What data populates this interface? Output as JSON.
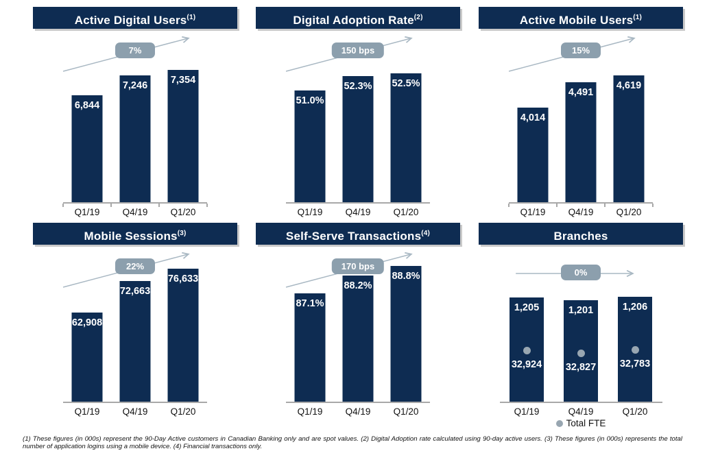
{
  "colors": {
    "bar_navy": "#0E2C52",
    "title_bar_navy": "#0E2C52",
    "badge_gray": "#8C9FAD",
    "arrow_gray": "#A9B8C3",
    "axis_gray": "#A8A8A8",
    "fte_dot_gray": "#98A6B1",
    "value_text": "#FFFFFF",
    "background": "#FFFFFF"
  },
  "footnote": "(1) These figures (in 000s) represent the 90-Day Active customers in Canadian Banking only and are spot values. (2) Digital Adoption rate calculated using 90-day active users. (3) These figures (in 000s) represents the total number of application logins using a mobile device. (4) Financial transactions only.",
  "chart_data": [
    {
      "type": "bar",
      "title": "Active Digital Users",
      "title_sup": "(1)",
      "categories": [
        "Q1/19",
        "Q4/19",
        "Q1/20"
      ],
      "values": [
        6844,
        7246,
        7354
      ],
      "value_labels": [
        "6,844",
        "7,246",
        "7,354"
      ],
      "growth_badge": "7%",
      "trend": "up",
      "ylim": [
        4700,
        7800
      ],
      "grid": false,
      "legend_position": "none"
    },
    {
      "type": "bar",
      "title": "Digital Adoption Rate",
      "title_sup": "(2)",
      "categories": [
        "Q1/19",
        "Q4/19",
        "Q1/20"
      ],
      "values": [
        51.0,
        52.3,
        52.5
      ],
      "value_labels": [
        "51.0%",
        "52.3%",
        "52.5%"
      ],
      "growth_badge": "150 bps",
      "trend": "up",
      "ylim": [
        41,
        54.8
      ],
      "grid": false,
      "legend_position": "none"
    },
    {
      "type": "bar",
      "title": "Active Mobile Users",
      "title_sup": "(1)",
      "categories": [
        "Q1/19",
        "Q4/19",
        "Q1/20"
      ],
      "values": [
        4014,
        4491,
        4619
      ],
      "value_labels": [
        "4,014",
        "4,491",
        "4,619"
      ],
      "growth_badge": "15%",
      "trend": "up",
      "ylim": [
        2200,
        5150
      ],
      "grid": false,
      "legend_position": "none"
    },
    {
      "type": "bar",
      "title": "Mobile Sessions",
      "title_sup": "(3)",
      "categories": [
        "Q1/19",
        "Q4/19",
        "Q1/20"
      ],
      "values": [
        62908,
        72663,
        76633
      ],
      "value_labels": [
        "62,908",
        "72,663",
        "76,633"
      ],
      "growth_badge": "22%",
      "trend": "up",
      "ylim": [
        35000,
        80000
      ],
      "grid": false,
      "legend_position": "none"
    },
    {
      "type": "bar",
      "title": "Self-Serve Transactions",
      "title_sup": "(4)",
      "categories": [
        "Q1/19",
        "Q4/19",
        "Q1/20"
      ],
      "values": [
        87.1,
        88.2,
        88.8
      ],
      "value_labels": [
        "87.1%",
        "88.2%",
        "88.8%"
      ],
      "growth_badge": "170 bps",
      "trend": "up",
      "ylim": [
        80.4,
        89.3
      ],
      "grid": false,
      "legend_position": "none"
    },
    {
      "type": "bar",
      "title": "Branches",
      "title_sup": "",
      "categories": [
        "Q1/19",
        "Q4/19",
        "Q1/20"
      ],
      "values": [
        1205,
        1201,
        1206
      ],
      "value_labels": [
        "1,205",
        "1,201",
        "1,206"
      ],
      "growth_badge": "0%",
      "trend": "flat",
      "ylim": [
        1060,
        1260
      ],
      "grid": false,
      "legend_position": "bottom",
      "secondary_series": {
        "name": "Total FTE",
        "values": [
          32924,
          32827,
          32783
        ],
        "value_labels": [
          "32,924",
          "32,827",
          "32,783"
        ]
      }
    }
  ]
}
